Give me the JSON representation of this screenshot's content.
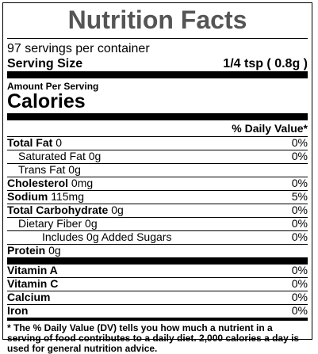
{
  "title": "Nutrition Facts",
  "servings_per_container": "97 servings per container",
  "serving_size": {
    "label": "Serving Size",
    "value": "1/4 tsp ( 0.8g )"
  },
  "amount_per_serving": "Amount Per Serving",
  "calories_label": "Calories",
  "daily_value_header": "% Daily Value*",
  "nutrients": [
    {
      "name": "Total Fat",
      "amount": "0",
      "dv": "0%",
      "bold": true,
      "indent": 0
    },
    {
      "name": "Saturated Fat",
      "amount": "0g",
      "dv": "0%",
      "bold": false,
      "indent": 1
    },
    {
      "name": "Trans Fat",
      "amount": "0g",
      "dv": "",
      "bold": false,
      "indent": 1
    },
    {
      "name": "Cholesterol",
      "amount": "0mg",
      "dv": "0%",
      "bold": true,
      "indent": 0
    },
    {
      "name": "Sodium",
      "amount": "115mg",
      "dv": "5%",
      "bold": true,
      "indent": 0
    },
    {
      "name": "Total Carbohydrate",
      "amount": "0g",
      "dv": "0%",
      "bold": true,
      "indent": 0
    },
    {
      "name": "Dietary Fiber",
      "amount": "0g",
      "dv": "0%",
      "bold": false,
      "indent": 1
    },
    {
      "name": "Includes 0g Added Sugars",
      "amount": "",
      "dv": "0%",
      "bold": false,
      "indent": 2
    },
    {
      "name": "Protein",
      "amount": "0g",
      "dv": "",
      "bold": true,
      "indent": 0
    }
  ],
  "vitamins": [
    {
      "name": "Vitamin A",
      "dv": "0%"
    },
    {
      "name": "Vitamin C",
      "dv": "0%"
    },
    {
      "name": "Calcium",
      "dv": "0%"
    },
    {
      "name": "Iron",
      "dv": "0%"
    }
  ],
  "footnote": "* The % Daily Value (DV) tells you how much a nutrient in a serving of food contributes to a daily diet. 2,000 calories a day is used for general nutrition advice."
}
